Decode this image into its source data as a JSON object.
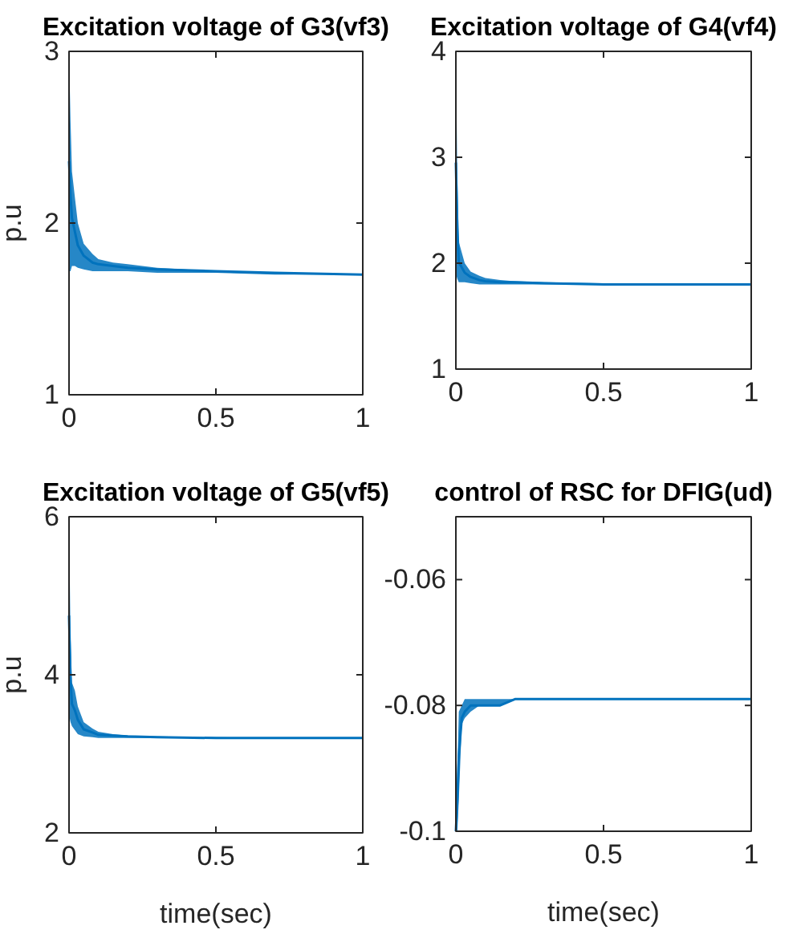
{
  "chart_data": [
    {
      "type": "line",
      "title": "Excitation voltage of G3(vf3)",
      "ylabel": "p.u",
      "xlim": [
        0,
        1
      ],
      "xticks": [
        0,
        0.5,
        1
      ],
      "ylim": [
        1,
        3
      ],
      "yticks": [
        1,
        2,
        3
      ],
      "tick_labels": "xy",
      "grid": false,
      "series": [
        {
          "color": "#0072bd",
          "x": [
            0,
            0.005,
            0.01,
            0.02,
            0.03,
            0.05,
            0.08,
            0.1,
            0.15,
            0.2,
            0.3,
            0.5,
            0.7,
            1
          ],
          "values": [
            2.36,
            2.16,
            2.03,
            1.95,
            1.87,
            1.81,
            1.77,
            1.76,
            1.75,
            1.74,
            1.73,
            1.72,
            1.71,
            1.7
          ],
          "lower": [
            1.72,
            1.72,
            1.75,
            1.75,
            1.74,
            1.73,
            1.72,
            1.72,
            1.72,
            1.72,
            1.71,
            1.71,
            1.7,
            1.7
          ],
          "upper": [
            3,
            2.6,
            2.3,
            2.15,
            2,
            1.88,
            1.82,
            1.79,
            1.77,
            1.76,
            1.74,
            1.72,
            1.71,
            1.7
          ]
        }
      ]
    },
    {
      "type": "line",
      "title": "Excitation voltage of G4(vf4)",
      "xlim": [
        0,
        1
      ],
      "xticks": [
        0,
        0.5,
        1
      ],
      "ylim": [
        1,
        4
      ],
      "yticks": [
        1,
        2,
        3,
        4
      ],
      "grid": false,
      "series": [
        {
          "color": "#0072bd",
          "x": [
            0,
            0.005,
            0.01,
            0.02,
            0.03,
            0.05,
            0.08,
            0.1,
            0.15,
            0.2,
            0.3,
            0.5,
            0.7,
            1
          ],
          "values": [
            2.95,
            2.33,
            2.01,
            1.96,
            1.91,
            1.87,
            1.84,
            1.83,
            1.82,
            1.82,
            1.81,
            1.8,
            1.8,
            1.8
          ],
          "lower": [
            1.9,
            1.85,
            1.82,
            1.82,
            1.82,
            1.81,
            1.8,
            1.8,
            1.8,
            1.8,
            1.8,
            1.8,
            1.8,
            1.8
          ],
          "upper": [
            4,
            2.8,
            2.2,
            2.1,
            2,
            1.92,
            1.88,
            1.86,
            1.84,
            1.83,
            1.82,
            1.81,
            1.8,
            1.8
          ]
        }
      ]
    },
    {
      "type": "line",
      "title": "Excitation voltage of G5(vf5)",
      "xlabel": "time(sec)",
      "ylabel": "p.u",
      "xlim": [
        0,
        1
      ],
      "xticks": [
        0,
        0.5,
        1
      ],
      "ylim": [
        2,
        6
      ],
      "yticks": [
        2,
        4,
        6
      ],
      "grid": false,
      "series": [
        {
          "color": "#0072bd",
          "x": [
            0,
            0.005,
            0.01,
            0.02,
            0.03,
            0.05,
            0.08,
            0.1,
            0.15,
            0.2,
            0.3,
            0.5,
            0.7,
            1
          ],
          "values": [
            4.75,
            3.95,
            3.63,
            3.55,
            3.43,
            3.31,
            3.27,
            3.24,
            3.23,
            3.22,
            3.21,
            3.2,
            3.2,
            3.2
          ],
          "lower": [
            3.5,
            3.4,
            3.35,
            3.3,
            3.25,
            3.22,
            3.21,
            3.2,
            3.2,
            3.2,
            3.2,
            3.2,
            3.2,
            3.2
          ],
          "upper": [
            6,
            4.5,
            3.9,
            3.8,
            3.6,
            3.4,
            3.32,
            3.28,
            3.25,
            3.23,
            3.22,
            3.21,
            3.2,
            3.2
          ]
        }
      ]
    },
    {
      "type": "line",
      "title": "control of RSC for DFIG(ud)",
      "xlabel": "time(sec)",
      "xlim": [
        0,
        1
      ],
      "xticks": [
        0,
        0.5,
        1
      ],
      "ylim": [
        -0.1,
        -0.05
      ],
      "yticks": [
        -0.1,
        -0.08,
        -0.06
      ],
      "grid": false,
      "series": [
        {
          "color": "#0072bd",
          "x": [
            0,
            0.005,
            0.01,
            0.02,
            0.03,
            0.05,
            0.08,
            0.1,
            0.15,
            0.2,
            0.3,
            0.5,
            0.7,
            1
          ],
          "values": [
            -0.1,
            -0.095,
            -0.088,
            -0.082,
            -0.081,
            -0.08,
            -0.08,
            -0.08,
            -0.08,
            -0.079,
            -0.079,
            -0.079,
            -0.079,
            -0.079
          ],
          "lower": [
            -0.1,
            -0.1,
            -0.095,
            -0.083,
            -0.082,
            -0.081,
            -0.08,
            -0.08,
            -0.08,
            -0.079,
            -0.079,
            -0.079,
            -0.079,
            -0.079
          ],
          "upper": [
            -0.1,
            -0.09,
            -0.081,
            -0.08,
            -0.079,
            -0.079,
            -0.079,
            -0.079,
            -0.079,
            -0.079,
            -0.079,
            -0.079,
            -0.079,
            -0.079
          ]
        }
      ]
    }
  ]
}
